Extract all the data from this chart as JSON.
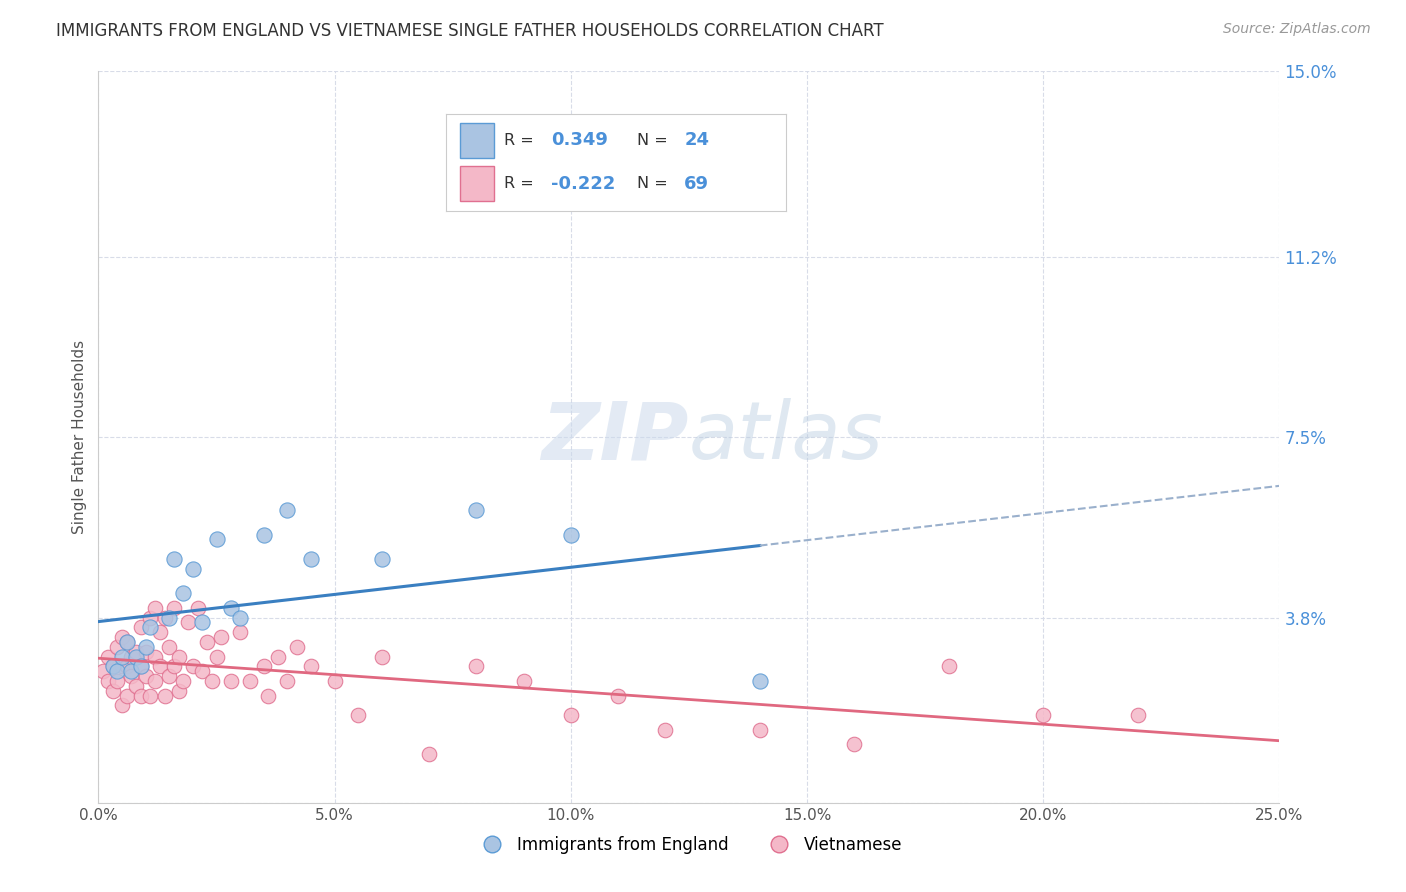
{
  "title": "IMMIGRANTS FROM ENGLAND VS VIETNAMESE SINGLE FATHER HOUSEHOLDS CORRELATION CHART",
  "source": "Source: ZipAtlas.com",
  "ylabel_left": "Single Father Households",
  "legend_label1": "Immigrants from England",
  "legend_label2": "Vietnamese",
  "r1": 0.349,
  "n1": 24,
  "r2": -0.222,
  "n2": 69,
  "xlim": [
    0.0,
    0.25
  ],
  "ylim": [
    0.0,
    0.15
  ],
  "xticks": [
    0.0,
    0.05,
    0.1,
    0.15,
    0.2,
    0.25
  ],
  "xtick_labels": [
    "0.0%",
    "5.0%",
    "10.0%",
    "15.0%",
    "20.0%",
    "25.0%"
  ],
  "ytick_vals": [
    0.0,
    0.038,
    0.075,
    0.112,
    0.15
  ],
  "ytick_labels_right": [
    "3.8%",
    "7.5%",
    "11.2%",
    "15.0%"
  ],
  "watermark_zip": "ZIP",
  "watermark_atlas": "atlas",
  "color_blue_fill": "#aac4e2",
  "color_blue_edge": "#5b9bd5",
  "color_pink_fill": "#f4b8c8",
  "color_pink_edge": "#e07090",
  "color_line_blue": "#3a7fc1",
  "color_line_pink": "#e06880",
  "color_line_dashed": "#9ab0cc",
  "background": "#ffffff",
  "grid_color": "#d8dce8",
  "blue_x": [
    0.003,
    0.004,
    0.005,
    0.006,
    0.007,
    0.008,
    0.009,
    0.01,
    0.011,
    0.015,
    0.016,
    0.018,
    0.02,
    0.022,
    0.025,
    0.028,
    0.03,
    0.035,
    0.04,
    0.045,
    0.06,
    0.08,
    0.1,
    0.14
  ],
  "blue_y": [
    0.028,
    0.027,
    0.03,
    0.033,
    0.027,
    0.03,
    0.028,
    0.032,
    0.036,
    0.038,
    0.05,
    0.043,
    0.048,
    0.037,
    0.054,
    0.04,
    0.038,
    0.055,
    0.06,
    0.05,
    0.05,
    0.06,
    0.055,
    0.025
  ],
  "pink_x": [
    0.001,
    0.002,
    0.002,
    0.003,
    0.003,
    0.004,
    0.004,
    0.005,
    0.005,
    0.005,
    0.006,
    0.006,
    0.006,
    0.007,
    0.007,
    0.008,
    0.008,
    0.009,
    0.009,
    0.009,
    0.01,
    0.01,
    0.011,
    0.011,
    0.012,
    0.012,
    0.012,
    0.013,
    0.013,
    0.014,
    0.014,
    0.015,
    0.015,
    0.016,
    0.016,
    0.017,
    0.017,
    0.018,
    0.019,
    0.02,
    0.021,
    0.022,
    0.023,
    0.024,
    0.025,
    0.026,
    0.028,
    0.03,
    0.032,
    0.035,
    0.036,
    0.038,
    0.04,
    0.042,
    0.045,
    0.05,
    0.055,
    0.06,
    0.07,
    0.08,
    0.09,
    0.1,
    0.11,
    0.12,
    0.14,
    0.16,
    0.18,
    0.2,
    0.22
  ],
  "pink_y": [
    0.027,
    0.025,
    0.03,
    0.023,
    0.028,
    0.025,
    0.032,
    0.02,
    0.028,
    0.034,
    0.022,
    0.028,
    0.033,
    0.026,
    0.03,
    0.024,
    0.031,
    0.022,
    0.028,
    0.036,
    0.026,
    0.031,
    0.022,
    0.038,
    0.03,
    0.025,
    0.04,
    0.028,
    0.035,
    0.022,
    0.038,
    0.032,
    0.026,
    0.028,
    0.04,
    0.03,
    0.023,
    0.025,
    0.037,
    0.028,
    0.04,
    0.027,
    0.033,
    0.025,
    0.03,
    0.034,
    0.025,
    0.035,
    0.025,
    0.028,
    0.022,
    0.03,
    0.025,
    0.032,
    0.028,
    0.025,
    0.018,
    0.03,
    0.01,
    0.028,
    0.025,
    0.018,
    0.022,
    0.015,
    0.015,
    0.012,
    0.028,
    0.018,
    0.018
  ]
}
